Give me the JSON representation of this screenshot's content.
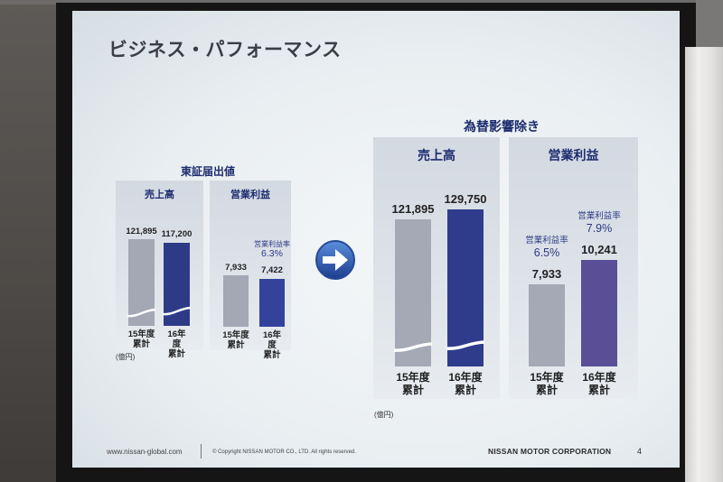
{
  "slide": {
    "title": "ビジネス・パフォーマンス",
    "arrow_icon": "right-arrow-icon",
    "footer": {
      "url": "www.nissan-global.com",
      "copyright": "© Copyright NISSAN MOTOR CO., LTD. All rights reserved.",
      "company": "NISSAN MOTOR CORPORATION",
      "page_number": "4"
    }
  },
  "groups": [
    {
      "heading": "東証届出値",
      "unit": "(億円)"
    },
    {
      "heading": "為替影響除き",
      "unit": "(億円)"
    }
  ],
  "colors": {
    "heading": "#1d2c6f",
    "annotation": "#2b3a84"
  },
  "chart_data": [
    {
      "type": "bar",
      "title": "売上高",
      "categories": [
        "15年度\n累計",
        "16年度\n累計"
      ],
      "values": [
        121895,
        117200
      ],
      "value_labels": [
        "121,895",
        "117,200"
      ],
      "axis_break": true,
      "bar_colors": [
        "#a4a7b4",
        "#2d3b87"
      ],
      "annotations": [
        null,
        null
      ]
    },
    {
      "type": "bar",
      "title": "営業利益",
      "categories": [
        "15年度\n累計",
        "16年度\n累計"
      ],
      "values": [
        7933,
        7422
      ],
      "value_labels": [
        "7,933",
        "7,422"
      ],
      "axis_break": false,
      "bar_colors": [
        "#a4a7b4",
        "#33429a"
      ],
      "annotations": [
        null,
        {
          "label": "営業利益率",
          "value": "6.3%"
        }
      ]
    },
    {
      "type": "bar",
      "title": "売上高",
      "categories": [
        "15年度\n累計",
        "16年度\n累計"
      ],
      "values": [
        121895,
        129750
      ],
      "value_labels": [
        "121,895",
        "129,750"
      ],
      "axis_break": true,
      "bar_colors": [
        "#a5a8b5",
        "#2f3c8c"
      ],
      "annotations": [
        null,
        null
      ]
    },
    {
      "type": "bar",
      "title": "営業利益",
      "categories": [
        "15年度\n累計",
        "16年度\n累計"
      ],
      "values": [
        7933,
        10241
      ],
      "value_labels": [
        "7,933",
        "10,241"
      ],
      "axis_break": false,
      "bar_colors": [
        "#a5a8b5",
        "#5a4f96"
      ],
      "annotations": [
        {
          "label": "営業利益率",
          "value": "6.5%"
        },
        {
          "label": "営業利益率",
          "value": "7.9%"
        }
      ]
    }
  ]
}
